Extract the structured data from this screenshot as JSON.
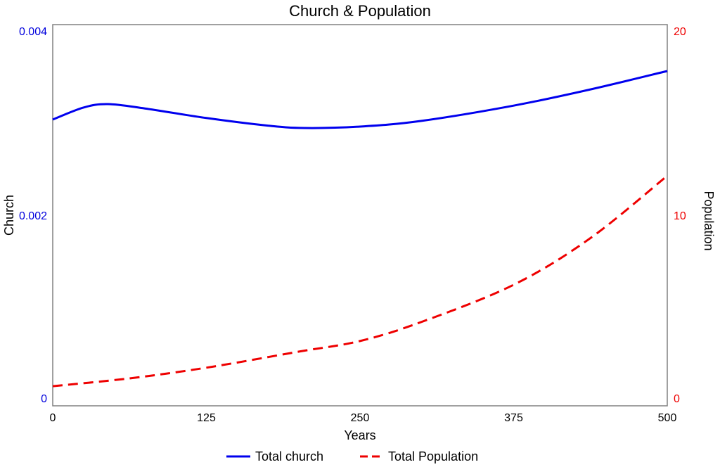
{
  "chart_data": {
    "type": "line",
    "title": "Church & Population",
    "xlabel": "Years",
    "ylabel_left": "Church",
    "ylabel_right": "Population",
    "xlim": [
      0,
      500
    ],
    "ylim_left": [
      0,
      0.004
    ],
    "ylim_right": [
      0,
      20
    ],
    "x_ticks": [
      "0",
      "125",
      "250",
      "375",
      "500"
    ],
    "y_left_ticks": [
      "0",
      "0.002",
      "0.004"
    ],
    "y_right_ticks": [
      "0",
      "10",
      "20"
    ],
    "grid": false,
    "legend_position": "bottom",
    "colors": {
      "left_axis": "#0000dd",
      "right_axis": "#ee0000",
      "frame": "#808080"
    },
    "series": [
      {
        "name": "Total church",
        "axis": "left",
        "color": "#0000ee",
        "style": "solid",
        "x": [
          0,
          25,
          45,
          75,
          125,
          175,
          205,
          250,
          300,
          375,
          437.5,
          500
        ],
        "y": [
          0.003004,
          0.00313,
          0.003166,
          0.00312,
          0.00302,
          0.00294,
          0.002915,
          0.00293,
          0.00299,
          0.00315,
          0.00332,
          0.003513
        ]
      },
      {
        "name": "Total Population",
        "axis": "right",
        "color": "#ee0000",
        "style": "dashed",
        "x": [
          0,
          62.5,
          125,
          200,
          250,
          300,
          375,
          437.5,
          500
        ],
        "y": [
          1.03,
          1.44,
          2.0,
          2.84,
          3.4,
          4.4,
          6.35,
          8.8,
          12.07
        ]
      }
    ]
  }
}
